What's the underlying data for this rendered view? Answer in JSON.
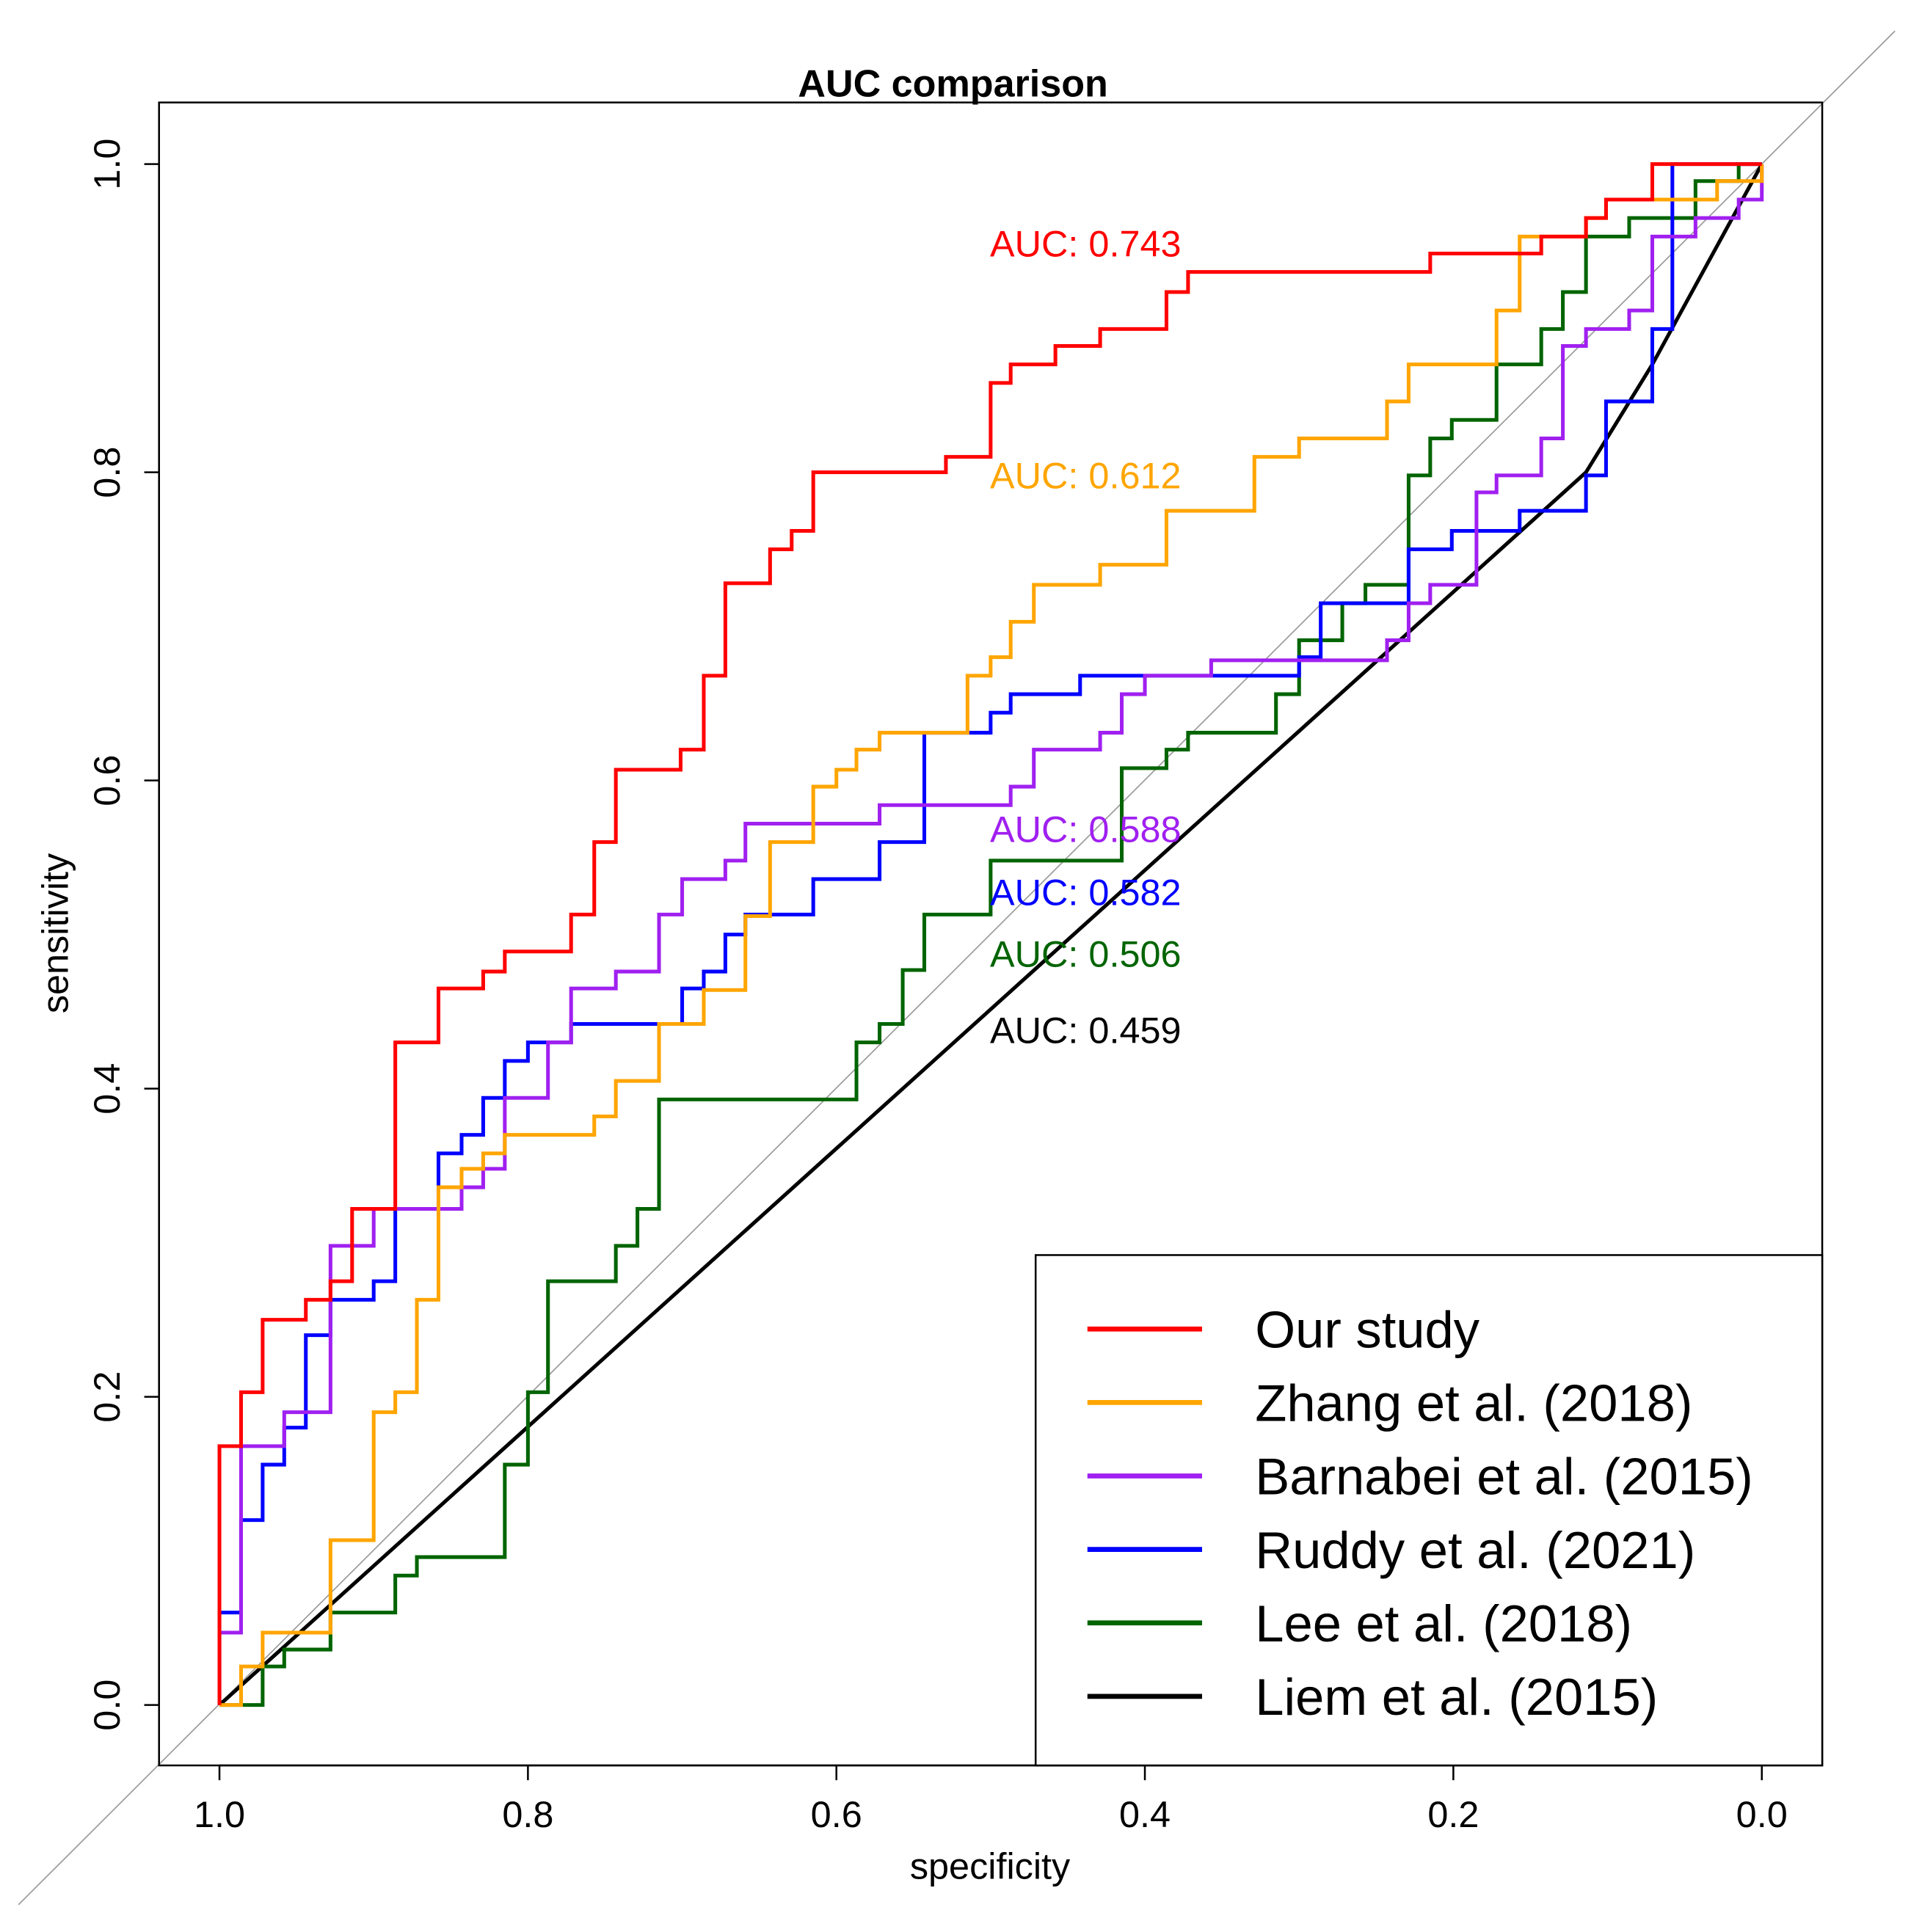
{
  "chart_data": {
    "type": "line",
    "title": "AUC comparison",
    "xlabel": "specificity",
    "ylabel": "sensitivity",
    "xlim": [
      1.0,
      0.0
    ],
    "ylim": [
      0.0,
      1.0
    ],
    "x_ticks": [
      "1.0",
      "0.8",
      "0.6",
      "0.4",
      "0.2",
      "0.0"
    ],
    "y_ticks": [
      "0.0",
      "0.2",
      "0.4",
      "0.6",
      "0.8",
      "1.0"
    ],
    "legend_position": "bottom-right",
    "reference_line": "diagonal",
    "series": [
      {
        "name": "Our study",
        "color": "#ff0000",
        "auc_label": "AUC: 0.743",
        "points": [
          [
            1,
            0
          ],
          [
            1,
            0.168
          ],
          [
            0.986,
            0.203
          ],
          [
            0.972,
            0.25
          ],
          [
            0.944,
            0.263
          ],
          [
            0.928,
            0.275
          ],
          [
            0.914,
            0.322
          ],
          [
            0.886,
            0.43
          ],
          [
            0.858,
            0.465
          ],
          [
            0.829,
            0.476
          ],
          [
            0.815,
            0.489
          ],
          [
            0.772,
            0.513
          ],
          [
            0.757,
            0.56
          ],
          [
            0.743,
            0.607
          ],
          [
            0.701,
            0.62
          ],
          [
            0.686,
            0.668
          ],
          [
            0.672,
            0.728
          ],
          [
            0.643,
            0.75
          ],
          [
            0.629,
            0.762
          ],
          [
            0.615,
            0.8
          ],
          [
            0.529,
            0.81
          ],
          [
            0.5,
            0.858
          ],
          [
            0.487,
            0.87
          ],
          [
            0.458,
            0.882
          ],
          [
            0.429,
            0.893
          ],
          [
            0.386,
            0.917
          ],
          [
            0.372,
            0.93
          ],
          [
            0.215,
            0.942
          ],
          [
            0.143,
            0.953
          ],
          [
            0.114,
            0.965
          ],
          [
            0.101,
            0.977
          ],
          [
            0.071,
            1
          ],
          [
            0,
            1
          ]
        ]
      },
      {
        "name": "Zhang et al. (2018)",
        "color": "#ffa500",
        "auc_label": "AUC: 0.612",
        "points": [
          [
            1,
            0
          ],
          [
            0.986,
            0.025
          ],
          [
            0.972,
            0.047
          ],
          [
            0.928,
            0.107
          ],
          [
            0.9,
            0.19
          ],
          [
            0.886,
            0.203
          ],
          [
            0.872,
            0.263
          ],
          [
            0.858,
            0.336
          ],
          [
            0.843,
            0.348
          ],
          [
            0.829,
            0.358
          ],
          [
            0.815,
            0.37
          ],
          [
            0.757,
            0.382
          ],
          [
            0.743,
            0.405
          ],
          [
            0.715,
            0.442
          ],
          [
            0.686,
            0.464
          ],
          [
            0.659,
            0.512
          ],
          [
            0.643,
            0.56
          ],
          [
            0.615,
            0.596
          ],
          [
            0.6,
            0.607
          ],
          [
            0.587,
            0.62
          ],
          [
            0.572,
            0.631
          ],
          [
            0.515,
            0.668
          ],
          [
            0.5,
            0.68
          ],
          [
            0.487,
            0.703
          ],
          [
            0.472,
            0.727
          ],
          [
            0.429,
            0.74
          ],
          [
            0.386,
            0.775
          ],
          [
            0.329,
            0.81
          ],
          [
            0.3,
            0.822
          ],
          [
            0.243,
            0.846
          ],
          [
            0.229,
            0.87
          ],
          [
            0.172,
            0.905
          ],
          [
            0.157,
            0.953
          ],
          [
            0.114,
            0.965
          ],
          [
            0.101,
            0.977
          ],
          [
            0.029,
            0.989
          ],
          [
            0,
            1
          ]
        ]
      },
      {
        "name": "Barnabei et al. (2015)",
        "color": "#a020f0",
        "auc_label": "AUC: 0.588",
        "points": [
          [
            1,
            0
          ],
          [
            1,
            0.047
          ],
          [
            0.986,
            0.168
          ],
          [
            0.958,
            0.19
          ],
          [
            0.928,
            0.298
          ],
          [
            0.9,
            0.322
          ],
          [
            0.843,
            0.336
          ],
          [
            0.829,
            0.348
          ],
          [
            0.815,
            0.394
          ],
          [
            0.787,
            0.43
          ],
          [
            0.772,
            0.465
          ],
          [
            0.743,
            0.476
          ],
          [
            0.715,
            0.513
          ],
          [
            0.7,
            0.536
          ],
          [
            0.672,
            0.548
          ],
          [
            0.659,
            0.572
          ],
          [
            0.572,
            0.584
          ],
          [
            0.487,
            0.596
          ],
          [
            0.472,
            0.62
          ],
          [
            0.429,
            0.631
          ],
          [
            0.415,
            0.656
          ],
          [
            0.4,
            0.668
          ],
          [
            0.357,
            0.678
          ],
          [
            0.243,
            0.691
          ],
          [
            0.229,
            0.715
          ],
          [
            0.215,
            0.727
          ],
          [
            0.185,
            0.787
          ],
          [
            0.172,
            0.798
          ],
          [
            0.143,
            0.822
          ],
          [
            0.129,
            0.882
          ],
          [
            0.114,
            0.893
          ],
          [
            0.086,
            0.905
          ],
          [
            0.071,
            0.953
          ],
          [
            0.043,
            0.965
          ],
          [
            0.015,
            0.977
          ],
          [
            0,
            1
          ]
        ]
      },
      {
        "name": "Ruddy et al. (2021)",
        "color": "#0000ff",
        "auc_label": "AUC: 0.582",
        "points": [
          [
            1,
            0
          ],
          [
            1,
            0.06
          ],
          [
            0.986,
            0.12
          ],
          [
            0.972,
            0.156
          ],
          [
            0.958,
            0.18
          ],
          [
            0.944,
            0.24
          ],
          [
            0.928,
            0.263
          ],
          [
            0.9,
            0.275
          ],
          [
            0.886,
            0.322
          ],
          [
            0.858,
            0.358
          ],
          [
            0.843,
            0.37
          ],
          [
            0.829,
            0.394
          ],
          [
            0.815,
            0.418
          ],
          [
            0.8,
            0.43
          ],
          [
            0.772,
            0.442
          ],
          [
            0.7,
            0.465
          ],
          [
            0.686,
            0.476
          ],
          [
            0.672,
            0.5
          ],
          [
            0.659,
            0.513
          ],
          [
            0.615,
            0.536
          ],
          [
            0.572,
            0.56
          ],
          [
            0.543,
            0.631
          ],
          [
            0.5,
            0.644
          ],
          [
            0.487,
            0.656
          ],
          [
            0.442,
            0.668
          ],
          [
            0.3,
            0.68
          ],
          [
            0.286,
            0.715
          ],
          [
            0.229,
            0.75
          ],
          [
            0.201,
            0.762
          ],
          [
            0.157,
            0.775
          ],
          [
            0.114,
            0.798
          ],
          [
            0.101,
            0.846
          ],
          [
            0.071,
            0.893
          ],
          [
            0.058,
            1
          ],
          [
            0,
            1
          ]
        ]
      },
      {
        "name": "Lee et al. (2018)",
        "color": "#006400",
        "auc_label": "AUC: 0.506",
        "points": [
          [
            1,
            0
          ],
          [
            0.972,
            0.025
          ],
          [
            0.958,
            0.036
          ],
          [
            0.928,
            0.06
          ],
          [
            0.886,
            0.084
          ],
          [
            0.872,
            0.096
          ],
          [
            0.815,
            0.156
          ],
          [
            0.8,
            0.203
          ],
          [
            0.787,
            0.275
          ],
          [
            0.743,
            0.298
          ],
          [
            0.729,
            0.322
          ],
          [
            0.715,
            0.393
          ],
          [
            0.587,
            0.43
          ],
          [
            0.572,
            0.442
          ],
          [
            0.557,
            0.477
          ],
          [
            0.543,
            0.513
          ],
          [
            0.5,
            0.548
          ],
          [
            0.415,
            0.608
          ],
          [
            0.386,
            0.62
          ],
          [
            0.372,
            0.631
          ],
          [
            0.315,
            0.656
          ],
          [
            0.3,
            0.691
          ],
          [
            0.272,
            0.715
          ],
          [
            0.257,
            0.727
          ],
          [
            0.229,
            0.798
          ],
          [
            0.215,
            0.822
          ],
          [
            0.201,
            0.834
          ],
          [
            0.172,
            0.87
          ],
          [
            0.143,
            0.893
          ],
          [
            0.129,
            0.917
          ],
          [
            0.114,
            0.953
          ],
          [
            0.086,
            0.965
          ],
          [
            0.043,
            0.989
          ],
          [
            0.015,
            1
          ],
          [
            0,
            1
          ]
        ]
      },
      {
        "name": "Liem et al. (2015)",
        "color": "#000000",
        "auc_label": "AUC: 0.459",
        "points": [
          [
            1,
            0
          ],
          [
            0.114,
            0.8
          ],
          [
            0.071,
            0.87
          ],
          [
            0,
            1
          ]
        ],
        "step": false
      }
    ]
  }
}
